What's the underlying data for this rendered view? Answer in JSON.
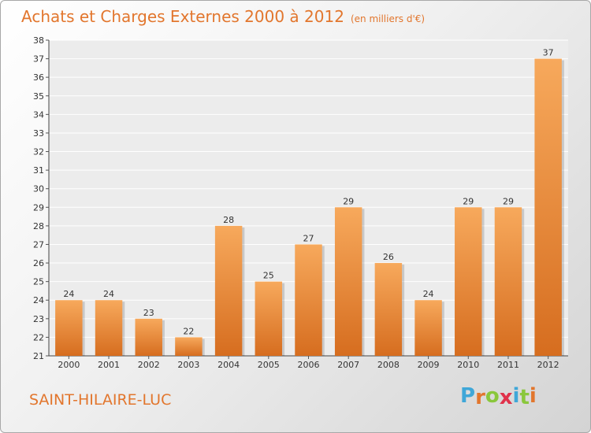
{
  "title": "Achats et Charges Externes 2000 à 2012",
  "subtitle": "(en milliers d'€)",
  "town": "SAINT-HILAIRE-LUC",
  "logo": {
    "text": "Proxiti",
    "letter_colors": [
      "#3fa7d8",
      "#e2762d",
      "#8ac73c",
      "#e0324b",
      "#3fa7d8",
      "#8ac73c",
      "#e2762d"
    ]
  },
  "colors": {
    "bar_top": "#f7a95c",
    "bar_bottom": "#d66d1f",
    "accent": "#e2762d"
  },
  "chart_data": {
    "type": "bar",
    "title": "Achats et Charges Externes 2000 à 2012",
    "subtitle": "(en milliers d'€)",
    "categories": [
      "2000",
      "2001",
      "2002",
      "2003",
      "2004",
      "2005",
      "2006",
      "2007",
      "2008",
      "2009",
      "2010",
      "2011",
      "2012"
    ],
    "values": [
      24,
      24,
      23,
      22,
      28,
      25,
      27,
      29,
      26,
      24,
      29,
      29,
      37
    ],
    "ylim": [
      21,
      38
    ],
    "yticks": [
      21,
      22,
      23,
      24,
      25,
      26,
      27,
      28,
      29,
      30,
      31,
      32,
      33,
      34,
      35,
      36,
      37,
      38
    ],
    "grid": true,
    "data_labels": true
  }
}
